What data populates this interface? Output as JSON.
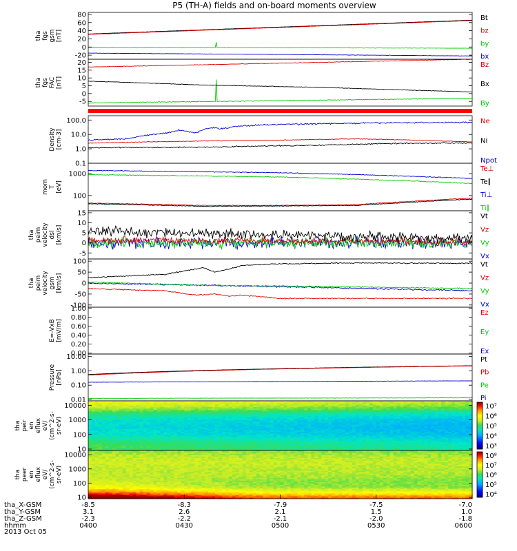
{
  "title": "P5 (TH-A) fields and on-board moments overview",
  "date": "2013 Oct 05",
  "colors": {
    "black": "#000000",
    "red": "#e00000",
    "green": "#00c800",
    "blue": "#0000d0"
  },
  "chart_data": [
    {
      "id": "fgs_gsm",
      "type": "line",
      "ylabel": [
        "tha",
        "fgs",
        "gsm",
        "[nT]"
      ],
      "ylim": [
        -30,
        85
      ],
      "scale": "linear",
      "yticks": [
        {
          "v": 80,
          "t": "80"
        },
        {
          "v": 60,
          "t": "60"
        },
        {
          "v": 40,
          "t": "40"
        },
        {
          "v": 20,
          "t": "20"
        },
        {
          "v": 0,
          "t": "0"
        },
        {
          "v": -20,
          "t": "-20"
        }
      ],
      "legend": [
        {
          "text": "Bt",
          "color": "black"
        },
        {
          "text": "bz",
          "color": "red"
        },
        {
          "text": "by",
          "color": "green"
        },
        {
          "text": "bx",
          "color": "blue"
        }
      ],
      "series": [
        {
          "name": "bx",
          "color": "blue",
          "x": [
            0,
            0.3,
            0.6,
            1
          ],
          "y": [
            -15,
            -17,
            -19,
            -22
          ],
          "noise": 0.4
        },
        {
          "name": "by",
          "color": "green",
          "x": [
            0,
            0.3,
            0.6,
            1
          ],
          "y": [
            -1,
            -1.5,
            -2,
            -3
          ],
          "noise": 0.4,
          "spike": {
            "x": 0.333,
            "y": 12
          }
        },
        {
          "name": "Bt",
          "color": "black",
          "x": [
            0,
            1
          ],
          "y": [
            32,
            66
          ],
          "noise": 0.3
        },
        {
          "name": "bz",
          "color": "red",
          "x": [
            0,
            1
          ],
          "y": [
            31,
            65
          ],
          "noise": 0.3
        }
      ]
    },
    {
      "id": "fgs_fac",
      "type": "line",
      "ylabel": [
        "tha",
        "fgs",
        "FAC",
        "[nT]"
      ],
      "ylim": [
        -8,
        22
      ],
      "scale": "linear",
      "yticks": [
        {
          "v": 20,
          "t": "20"
        },
        {
          "v": 15,
          "t": "15"
        },
        {
          "v": 10,
          "t": "10"
        },
        {
          "v": 5,
          "t": "5"
        },
        {
          "v": 0,
          "t": "0"
        },
        {
          "v": -5,
          "t": "-5"
        }
      ],
      "legend": [
        {
          "text": "Bz",
          "color": "red"
        },
        {
          "text": "Bx",
          "color": "black"
        },
        {
          "text": "By",
          "color": "green"
        }
      ],
      "series": [
        {
          "name": "By",
          "color": "green",
          "x": [
            0,
            1
          ],
          "y": [
            -6,
            -3
          ],
          "noise": 0.3,
          "spike": {
            "x": 0.333,
            "y": 9
          }
        },
        {
          "name": "Bx",
          "color": "black",
          "x": [
            0,
            0.3,
            0.6,
            1
          ],
          "y": [
            8,
            5.5,
            4,
            1
          ],
          "noise": 0.2
        },
        {
          "name": "Bz",
          "color": "red",
          "x": [
            0,
            1
          ],
          "y": [
            17,
            22
          ],
          "noise": 0.2
        }
      ]
    },
    {
      "id": "density",
      "type": "line",
      "ylabel": [
        "Density",
        "[cm-3]"
      ],
      "ylim": [
        0.1,
        200
      ],
      "scale": "log",
      "yticks": [
        {
          "v": 100,
          "t": "100.0"
        },
        {
          "v": 10,
          "t": "10.0"
        },
        {
          "v": 1,
          "t": "1.0"
        },
        {
          "v": 0.1,
          "t": "0.1"
        }
      ],
      "legend": [
        {
          "text": "Ne",
          "color": "red"
        },
        {
          "text": "Ni",
          "color": "black"
        },
        {
          "text": "Npot",
          "color": "blue"
        }
      ],
      "series": [
        {
          "name": "Npot",
          "color": "blue",
          "x": [
            0,
            0.1,
            0.2,
            0.24,
            0.28,
            0.32,
            0.35,
            0.4,
            0.5,
            0.6,
            0.8,
            1
          ],
          "y": [
            4,
            5,
            12,
            20,
            12,
            30,
            25,
            40,
            50,
            55,
            65,
            70
          ],
          "noise": 0.06
        },
        {
          "name": "Ni",
          "color": "black",
          "x": [
            0,
            0.3,
            0.6,
            0.8,
            1
          ],
          "y": [
            1.2,
            1.3,
            1.8,
            2.4,
            2.6
          ],
          "noise": 0.05
        },
        {
          "name": "Ne",
          "color": "red",
          "x": [
            0,
            0.3,
            0.5,
            0.7,
            1
          ],
          "y": [
            2.5,
            3.5,
            4,
            5,
            3
          ],
          "noise": 0.03
        }
      ]
    },
    {
      "id": "temperature",
      "type": "line",
      "ylabel": [
        "mom",
        "T",
        "[eV]"
      ],
      "ylim": [
        20,
        3000
      ],
      "scale": "log",
      "yticks": [
        {
          "v": 1000,
          "t": "1000"
        },
        {
          "v": 100,
          "t": "100"
        }
      ],
      "legend": [
        {
          "text": "Te⊥",
          "color": "red"
        },
        {
          "text": "Te∥",
          "color": "black"
        },
        {
          "text": "Ti⊥",
          "color": "blue"
        },
        {
          "text": "Ti∥",
          "color": "green"
        }
      ],
      "series": [
        {
          "name": "Ti⊥",
          "color": "blue",
          "x": [
            0,
            0.5,
            1
          ],
          "y": [
            1400,
            1100,
            600
          ],
          "noise": 0.02
        },
        {
          "name": "Ti∥",
          "color": "green",
          "x": [
            0,
            0.5,
            1
          ],
          "y": [
            900,
            700,
            350
          ],
          "noise": 0.02
        },
        {
          "name": "Te⊥",
          "color": "red",
          "x": [
            0,
            0.3,
            0.5,
            0.7,
            0.85,
            1
          ],
          "y": [
            45,
            35,
            35,
            38,
            55,
            75
          ],
          "noise": 0.02
        },
        {
          "name": "Te∥",
          "color": "black",
          "x": [
            0,
            0.3,
            0.5,
            0.7,
            0.85,
            1
          ],
          "y": [
            42,
            32,
            33,
            35,
            50,
            68
          ],
          "noise": 0.02
        }
      ]
    },
    {
      "id": "vel_esa",
      "type": "line",
      "ylabel": [
        "tha",
        "peim",
        "velocity",
        "dsl",
        "[km/s]"
      ],
      "ylim": [
        -8,
        16
      ],
      "scale": "linear",
      "yticks": [
        {
          "v": 15,
          "t": "15"
        },
        {
          "v": 10,
          "t": "10"
        },
        {
          "v": 5,
          "t": "5"
        },
        {
          "v": 0,
          "t": "0"
        },
        {
          "v": -5,
          "t": "-5"
        }
      ],
      "legend": [
        {
          "text": "Vt",
          "color": "black"
        },
        {
          "text": "Vz",
          "color": "red"
        },
        {
          "text": "Vy",
          "color": "green"
        },
        {
          "text": "Vx",
          "color": "blue"
        }
      ],
      "series": [
        {
          "name": "Vx",
          "color": "blue",
          "x": [
            0,
            1
          ],
          "y": [
            0,
            0
          ],
          "noise": 3.5
        },
        {
          "name": "Vy",
          "color": "green",
          "x": [
            0,
            1
          ],
          "y": [
            0,
            0
          ],
          "noise": 3
        },
        {
          "name": "Vz",
          "color": "red",
          "x": [
            0,
            1
          ],
          "y": [
            1.5,
            0.5
          ],
          "noise": 2
        },
        {
          "name": "Vt",
          "color": "black",
          "x": [
            0,
            1
          ],
          "y": [
            6,
            2
          ],
          "noise": 3
        }
      ]
    },
    {
      "id": "vel_gsm",
      "type": "line",
      "ylabel": [
        "tha",
        "peim",
        "velocity",
        "gsm",
        "[km/s]"
      ],
      "ylim": [
        -110,
        110
      ],
      "scale": "linear",
      "yticks": [
        {
          "v": 100,
          "t": "100"
        },
        {
          "v": 50,
          "t": "50"
        },
        {
          "v": 0,
          "t": "0"
        },
        {
          "v": -50,
          "t": "-50"
        },
        {
          "v": -100,
          "t": "-100"
        }
      ],
      "legend": [
        {
          "text": "Vt",
          "color": "black"
        },
        {
          "text": "Vz",
          "color": "red"
        },
        {
          "text": "Vy",
          "color": "green"
        },
        {
          "text": "Vx",
          "color": "blue"
        }
      ],
      "series": [
        {
          "name": "Vt",
          "color": "black",
          "x": [
            0,
            0.2,
            0.3,
            0.33,
            0.37,
            0.4,
            0.5,
            0.7,
            1
          ],
          "y": [
            25,
            40,
            70,
            50,
            65,
            80,
            88,
            92,
            90
          ],
          "noise": 3
        },
        {
          "name": "Vx",
          "color": "blue",
          "x": [
            0,
            0.3,
            0.6,
            1
          ],
          "y": [
            0,
            -10,
            -20,
            -35
          ],
          "noise": 4
        },
        {
          "name": "Vy",
          "color": "green",
          "x": [
            0,
            0.3,
            0.6,
            1
          ],
          "y": [
            5,
            -10,
            -15,
            -25
          ],
          "noise": 3
        },
        {
          "name": "Vz",
          "color": "red",
          "x": [
            0,
            0.2,
            0.28,
            0.33,
            0.37,
            0.4,
            0.5,
            1
          ],
          "y": [
            -25,
            -35,
            -55,
            -50,
            -60,
            -55,
            -70,
            -70
          ],
          "noise": 3
        }
      ]
    },
    {
      "id": "efield",
      "type": "line",
      "ylabel": [
        "E=-VxB",
        "[mV/m]"
      ],
      "ylim": [
        -0.02,
        1.02
      ],
      "scale": "linear",
      "yticks": [
        {
          "v": 1,
          "t": "1.00"
        },
        {
          "v": 0.8,
          "t": "0.80"
        },
        {
          "v": 0.6,
          "t": "0.60"
        },
        {
          "v": 0.4,
          "t": "0.40"
        },
        {
          "v": 0.2,
          "t": "0.20"
        },
        {
          "v": 0,
          "t": "0.00"
        }
      ],
      "legend": [
        {
          "text": "Ez",
          "color": "red"
        },
        {
          "text": "Ey",
          "color": "green"
        },
        {
          "text": "Ex",
          "color": "blue"
        }
      ],
      "series": []
    },
    {
      "id": "pressure",
      "type": "line",
      "ylabel": [
        "Pressure",
        "[nPa]"
      ],
      "ylim": [
        0.008,
        15
      ],
      "scale": "log",
      "yticks": [
        {
          "v": 10,
          "t": "10.00"
        },
        {
          "v": 1,
          "t": "1.00"
        },
        {
          "v": 0.1,
          "t": "0.10"
        },
        {
          "v": 0.01,
          "t": "0.01"
        }
      ],
      "legend": [
        {
          "text": "Pt",
          "color": "black"
        },
        {
          "text": "Pb",
          "color": "red"
        },
        {
          "text": "Pe",
          "color": "green"
        },
        {
          "text": "Pi",
          "color": "blue"
        }
      ],
      "series": [
        {
          "name": "Pi",
          "color": "blue",
          "x": [
            0,
            1
          ],
          "y": [
            0.16,
            0.2
          ],
          "noise": 0.01
        },
        {
          "name": "Pe",
          "color": "green",
          "x": [
            0,
            1
          ],
          "y": [
            0.012,
            0.013
          ],
          "noise": 0.01
        },
        {
          "name": "Pt",
          "color": "black",
          "x": [
            0,
            1
          ],
          "y": [
            0.55,
            2.3
          ],
          "noise": 0.005
        },
        {
          "name": "Pb",
          "color": "red",
          "x": [
            0,
            1
          ],
          "y": [
            0.5,
            2.2
          ],
          "noise": 0.005
        }
      ]
    },
    {
      "id": "ion_spec",
      "type": "heatmap",
      "ylabel": [
        "tha",
        "peir",
        "en",
        "eflux",
        "eV/",
        "(cm^2-s-",
        "sr-eV)"
      ],
      "ylim": [
        8,
        20000
      ],
      "scale": "log",
      "yticks": [
        {
          "v": 10000,
          "t": "10000"
        },
        {
          "v": 1000,
          "t": "1000"
        },
        {
          "v": 100,
          "t": "100"
        },
        {
          "v": 10,
          "t": "10"
        }
      ],
      "colorbar": {
        "labels": [
          "10⁷",
          "10⁶",
          "10⁵",
          "10⁴",
          "10³"
        ]
      },
      "profile": {
        "e": [
          8,
          15,
          30,
          100,
          300,
          1000,
          3000,
          6000,
          12000,
          20000
        ],
        "v": [
          0.52,
          0.52,
          0.5,
          0.42,
          0.4,
          0.42,
          0.5,
          0.6,
          0.66,
          0.7
        ],
        "trend": 0.08
      }
    },
    {
      "id": "elec_spec",
      "type": "heatmap",
      "ylabel": [
        "tha",
        "peer",
        "en",
        "eflux",
        "eV/",
        "(cm^2-s-",
        "sr-eV)"
      ],
      "ylim": [
        8,
        20000
      ],
      "scale": "log",
      "yticks": [
        {
          "v": 10000,
          "t": "10000"
        },
        {
          "v": 1000,
          "t": "1000"
        },
        {
          "v": 100,
          "t": "100"
        },
        {
          "v": 10,
          "t": "10"
        }
      ],
      "colorbar": {
        "labels": [
          "10⁸",
          "10⁷",
          "10⁶",
          "10⁵",
          "10⁴"
        ]
      },
      "profile": {
        "e": [
          8,
          12,
          18,
          30,
          60,
          150,
          400,
          1000,
          3000,
          8000,
          20000
        ],
        "v": [
          0.98,
          0.92,
          0.82,
          0.72,
          0.62,
          0.6,
          0.62,
          0.62,
          0.64,
          0.62,
          0.58
        ],
        "trend": 0.02
      }
    }
  ],
  "xaxis": {
    "rows": [
      {
        "label": "tha_X-GSM",
        "values": [
          "-8.5",
          "-8.3",
          "-7.9",
          "-7.5",
          "-7.0"
        ]
      },
      {
        "label": "tha_Y-GSM",
        "values": [
          "3.1",
          "2.6",
          "2.1",
          "1.5",
          "1.0"
        ]
      },
      {
        "label": "tha_Z-GSM",
        "values": [
          "-2.3",
          "-2.2",
          "-2.1",
          "-2.0",
          "-1.8"
        ]
      },
      {
        "label": "hhmm",
        "values": [
          "0400",
          "0430",
          "0500",
          "0530",
          "0600"
        ]
      }
    ]
  }
}
